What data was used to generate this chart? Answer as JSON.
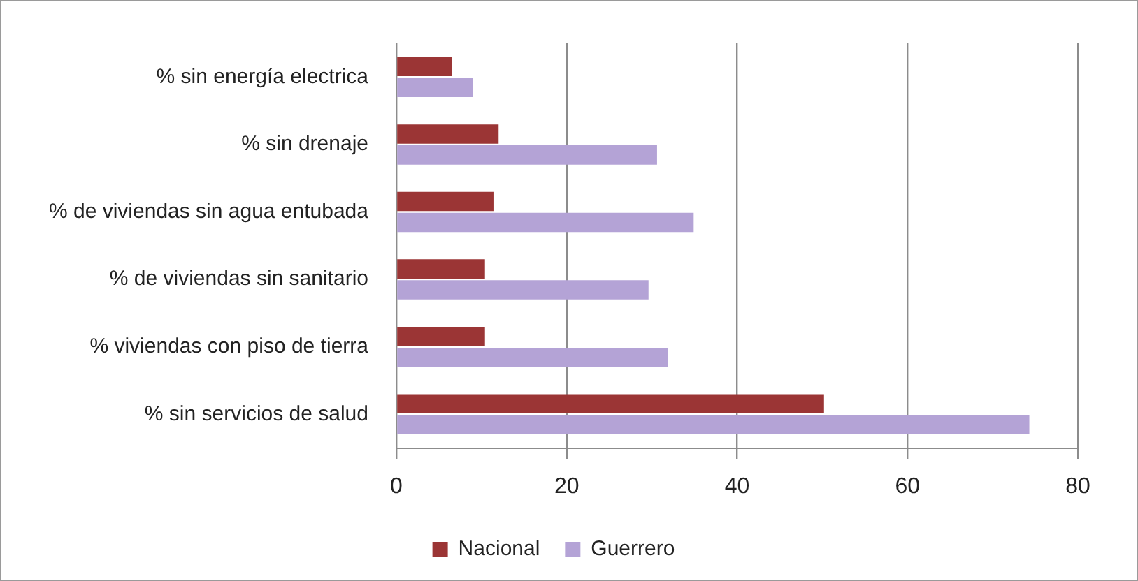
{
  "chart_data": {
    "type": "bar",
    "orientation": "horizontal",
    "categories": [
      "% sin energía electrica",
      "% sin drenaje",
      "% de viviendas sin agua entubada",
      "% de viviendas sin sanitario",
      "% viviendas con piso de tierra",
      "% sin servicios de salud"
    ],
    "series": [
      {
        "name": "Nacional",
        "color": "#9b3535",
        "values": [
          6.5,
          12,
          11.4,
          10.4,
          10.4,
          50.2
        ]
      },
      {
        "name": "Guerrero",
        "color": "#b4a3d6",
        "values": [
          9,
          30.6,
          34.9,
          29.6,
          31.9,
          74.3
        ]
      }
    ],
    "xlim": [
      0,
      80
    ],
    "xticks": [
      0,
      20,
      40,
      60,
      80
    ],
    "grid": "x",
    "legend": "bottom"
  }
}
